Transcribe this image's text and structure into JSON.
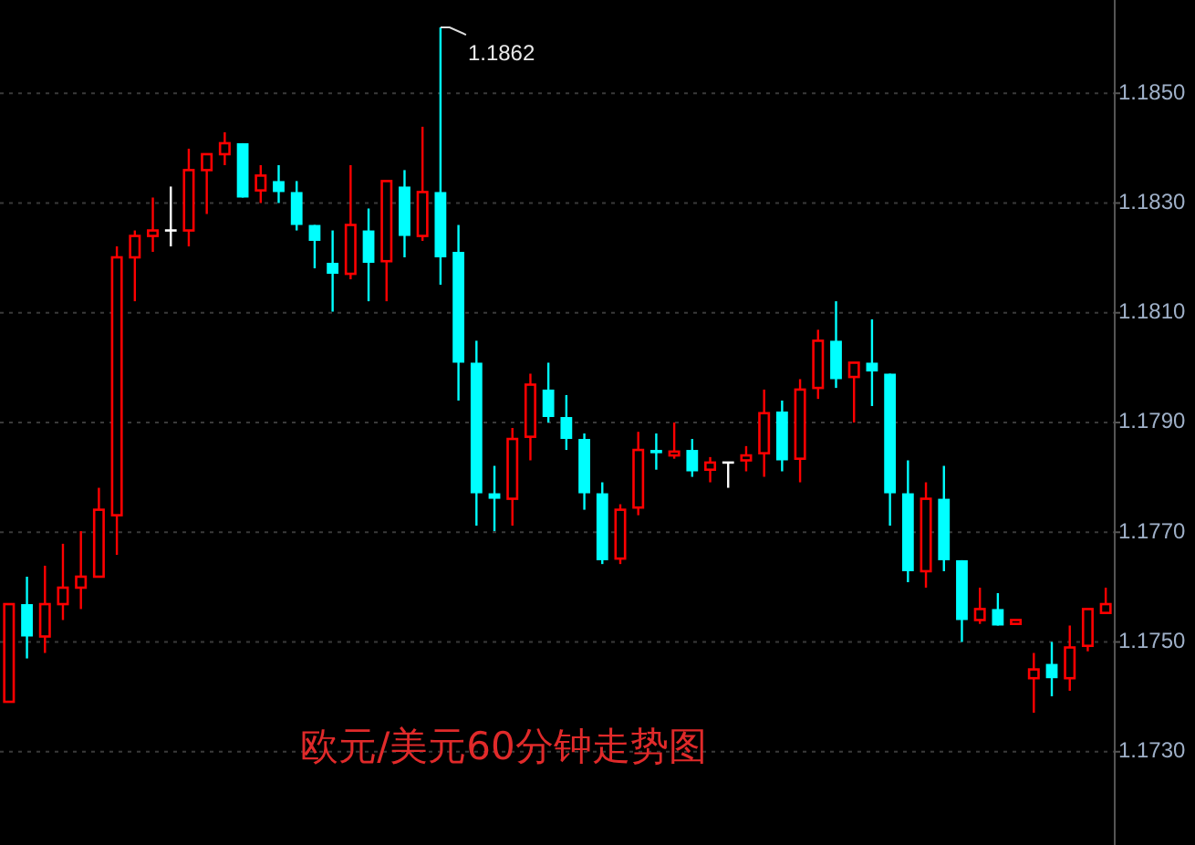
{
  "chart_data": {
    "type": "candlestick",
    "title": "欧元/美元60分钟走势图",
    "annotations": [
      "1.1862"
    ],
    "categories": [
      null,
      null,
      null,
      null,
      null,
      null,
      null,
      null,
      null,
      null,
      null,
      null,
      null,
      null,
      null,
      null,
      null,
      null,
      null,
      null,
      null,
      null,
      null,
      null,
      null,
      null,
      null,
      null,
      null,
      null,
      null,
      null,
      null,
      null,
      null,
      null,
      null,
      null,
      null,
      null,
      null,
      null,
      null,
      null,
      null,
      null,
      null,
      null,
      null,
      null,
      null,
      null,
      null,
      null,
      null,
      null,
      null,
      null,
      null,
      null,
      null,
      null
    ],
    "ohlc": [
      [
        1.17391,
        1.17569,
        1.17391,
        1.17569
      ],
      [
        1.17569,
        1.17619,
        1.1747,
        1.1751
      ],
      [
        1.1751,
        1.17639,
        1.1748,
        1.17569
      ],
      [
        1.17569,
        1.17679,
        1.1754,
        1.17599
      ],
      [
        1.17599,
        1.17702,
        1.1756,
        1.17619
      ],
      [
        1.17619,
        1.17781,
        1.17619,
        1.17741
      ],
      [
        1.17731,
        1.18221,
        1.17659,
        1.18201
      ],
      [
        1.18201,
        1.1825,
        1.18121,
        1.1824
      ],
      [
        1.1824,
        1.1831,
        1.18211,
        1.1825
      ],
      [
        1.1825,
        1.1833,
        1.18221,
        1.1825
      ],
      [
        1.1825,
        1.18399,
        1.18221,
        1.1836
      ],
      [
        1.1836,
        1.18389,
        1.1828,
        1.18389
      ],
      [
        1.18389,
        1.18429,
        1.18369,
        1.18409
      ],
      [
        1.18409,
        1.18409,
        1.1831,
        1.1831
      ],
      [
        1.18323,
        1.18369,
        1.183,
        1.1835
      ],
      [
        1.1834,
        1.18369,
        1.183,
        1.1832
      ],
      [
        1.1832,
        1.1834,
        1.1825,
        1.1826
      ],
      [
        1.1826,
        1.1826,
        1.18181,
        1.18231
      ],
      [
        1.18191,
        1.1825,
        1.18102,
        1.18171
      ],
      [
        1.18171,
        1.18369,
        1.18161,
        1.1826
      ],
      [
        1.1825,
        1.1829,
        1.18121,
        1.18191
      ],
      [
        1.18194,
        1.1834,
        1.18121,
        1.1834
      ],
      [
        1.1833,
        1.1836,
        1.18201,
        1.1824
      ],
      [
        1.1824,
        1.18439,
        1.18231,
        1.1832
      ],
      [
        1.1832,
        1.1862,
        1.18151,
        1.18201
      ],
      [
        1.18211,
        1.1826,
        1.1794,
        1.18009
      ],
      [
        1.18009,
        1.18049,
        1.17712,
        1.17771
      ],
      [
        1.17771,
        1.17821,
        1.17702,
        1.17761
      ],
      [
        1.17761,
        1.1789,
        1.17712,
        1.1787
      ],
      [
        1.17874,
        1.17989,
        1.17831,
        1.17969
      ],
      [
        1.1796,
        1.18009,
        1.179,
        1.1791
      ],
      [
        1.1791,
        1.1795,
        1.1785,
        1.1787
      ],
      [
        1.1787,
        1.1788,
        1.17741,
        1.17771
      ],
      [
        1.17771,
        1.17791,
        1.17642,
        1.17649
      ],
      [
        1.17652,
        1.17751,
        1.17642,
        1.17741
      ],
      [
        1.17745,
        1.17883,
        1.17731,
        1.1785
      ],
      [
        1.1785,
        1.1788,
        1.17814,
        1.17844
      ],
      [
        1.1784,
        1.179,
        1.17834,
        1.17847
      ],
      [
        1.1785,
        1.1787,
        1.17801,
        1.17811
      ],
      [
        1.17814,
        1.17837,
        1.17791,
        1.17827
      ],
      [
        1.17827,
        1.17827,
        1.17781,
        1.17827
      ],
      [
        1.17831,
        1.17857,
        1.17811,
        1.1784
      ],
      [
        1.17844,
        1.1796,
        1.17801,
        1.17917
      ],
      [
        1.1792,
        1.1794,
        1.17811,
        1.17831
      ],
      [
        1.17834,
        1.17979,
        1.17791,
        1.1796
      ],
      [
        1.17963,
        1.18069,
        1.17943,
        1.18049
      ],
      [
        1.18049,
        1.18121,
        1.17963,
        1.17979
      ],
      [
        1.17983,
        1.18009,
        1.179,
        1.18009
      ],
      [
        1.18009,
        1.18088,
        1.1793,
        1.17993
      ],
      [
        1.17989,
        1.17989,
        1.17712,
        1.17771
      ],
      [
        1.17771,
        1.17831,
        1.17609,
        1.17629
      ],
      [
        1.17629,
        1.17791,
        1.17599,
        1.17761
      ],
      [
        1.17761,
        1.17821,
        1.17629,
        1.17649
      ],
      [
        1.17649,
        1.17649,
        1.175,
        1.1754
      ],
      [
        1.1754,
        1.17599,
        1.17533,
        1.1756
      ],
      [
        1.1756,
        1.17589,
        1.1753,
        1.1753
      ],
      [
        1.17533,
        1.1754,
        1.17533,
        1.1754
      ],
      [
        1.17434,
        1.1748,
        1.17371,
        1.1745
      ],
      [
        1.1746,
        1.175,
        1.17401,
        1.17434
      ],
      [
        1.17434,
        1.1753,
        1.17411,
        1.1749
      ],
      [
        1.17493,
        1.1756,
        1.17483,
        1.1756
      ],
      [
        1.17553,
        1.17599,
        1.17553,
        1.17569
      ]
    ],
    "colors": [
      "#ff0000",
      "#00ffff",
      "#ff0000",
      "#ff0000",
      "#ff0000",
      "#ff0000",
      "#ff0000",
      "#ff0000",
      "#ff0000",
      "#ffffff",
      "#ff0000",
      "#ff0000",
      "#ff0000",
      "#00ffff",
      "#ff0000",
      "#00ffff",
      "#00ffff",
      "#00ffff",
      "#00ffff",
      "#ff0000",
      "#00ffff",
      "#ff0000",
      "#00ffff",
      "#ff0000",
      "#00ffff",
      "#00ffff",
      "#00ffff",
      "#00ffff",
      "#ff0000",
      "#ff0000",
      "#00ffff",
      "#00ffff",
      "#00ffff",
      "#00ffff",
      "#ff0000",
      "#ff0000",
      "#00ffff",
      "#ff0000",
      "#00ffff",
      "#ff0000",
      "#ffffff",
      "#ff0000",
      "#ff0000",
      "#00ffff",
      "#ff0000",
      "#ff0000",
      "#00ffff",
      "#ff0000",
      "#00ffff",
      "#00ffff",
      "#00ffff",
      "#ff0000",
      "#00ffff",
      "#00ffff",
      "#ff0000",
      "#00ffff",
      "#ff0000",
      "#ff0000",
      "#00ffff",
      "#ff0000",
      "#ff0000",
      "#ff0000"
    ],
    "ylim": [
      1.1713,
      1.1867
    ],
    "yticks": [
      {
        "value": 1.173,
        "label": "1.1730"
      },
      {
        "value": 1.175,
        "label": "1.1750"
      },
      {
        "value": 1.177,
        "label": "1.1770"
      },
      {
        "value": 1.179,
        "label": "1.1790"
      },
      {
        "value": 1.181,
        "label": "1.1810"
      },
      {
        "value": 1.183,
        "label": "1.1830"
      },
      {
        "value": 1.185,
        "label": "1.1850"
      }
    ],
    "grid": "y"
  }
}
